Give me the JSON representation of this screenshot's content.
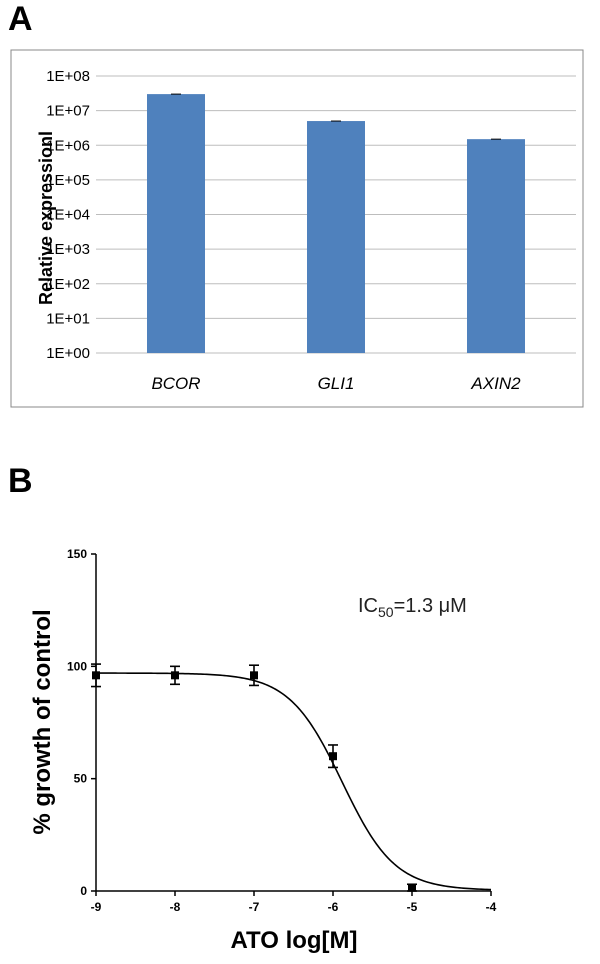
{
  "panels": {
    "a_label": "A",
    "b_label": "B"
  },
  "chart_data": [
    {
      "type": "bar",
      "title": "",
      "xlabel": "",
      "ylabel": "Relative expressionl",
      "yscale": "log",
      "ylim": [
        1,
        100000000
      ],
      "yticks": [
        "1E+00",
        "1E+01",
        "1E+02",
        "1E+03",
        "1E+04",
        "1E+05",
        "1E+06",
        "1E+07",
        "1E+08"
      ],
      "categories": [
        "BCOR",
        "GLI1",
        "AXIN2"
      ],
      "values": [
        30000000,
        5000000,
        1500000
      ],
      "bar_color": "#4f81bd",
      "grid": true
    },
    {
      "type": "scatter",
      "title": "",
      "xlabel": "ATO log[M]",
      "ylabel": "% growth of control",
      "xlim": [
        -9,
        -4
      ],
      "ylim": [
        0,
        150
      ],
      "xticks": [
        "-9",
        "-8",
        "-7",
        "-6",
        "-5",
        "-4"
      ],
      "yticks": [
        "0",
        "50",
        "100",
        "150"
      ],
      "x": [
        -9,
        -8,
        -7,
        -6,
        -5
      ],
      "y": [
        96,
        96,
        96,
        60,
        1.5
      ],
      "error": [
        5,
        4,
        4.5,
        5,
        1.5
      ],
      "fit": {
        "model": "sigmoidal dose-response",
        "top": 97,
        "bottom": 0.3,
        "log_ic50": -5.886,
        "hill": 1.3
      },
      "annotation": {
        "text": "IC",
        "sub": "50",
        "rest": "=1.3 μM"
      },
      "grid": false
    }
  ]
}
